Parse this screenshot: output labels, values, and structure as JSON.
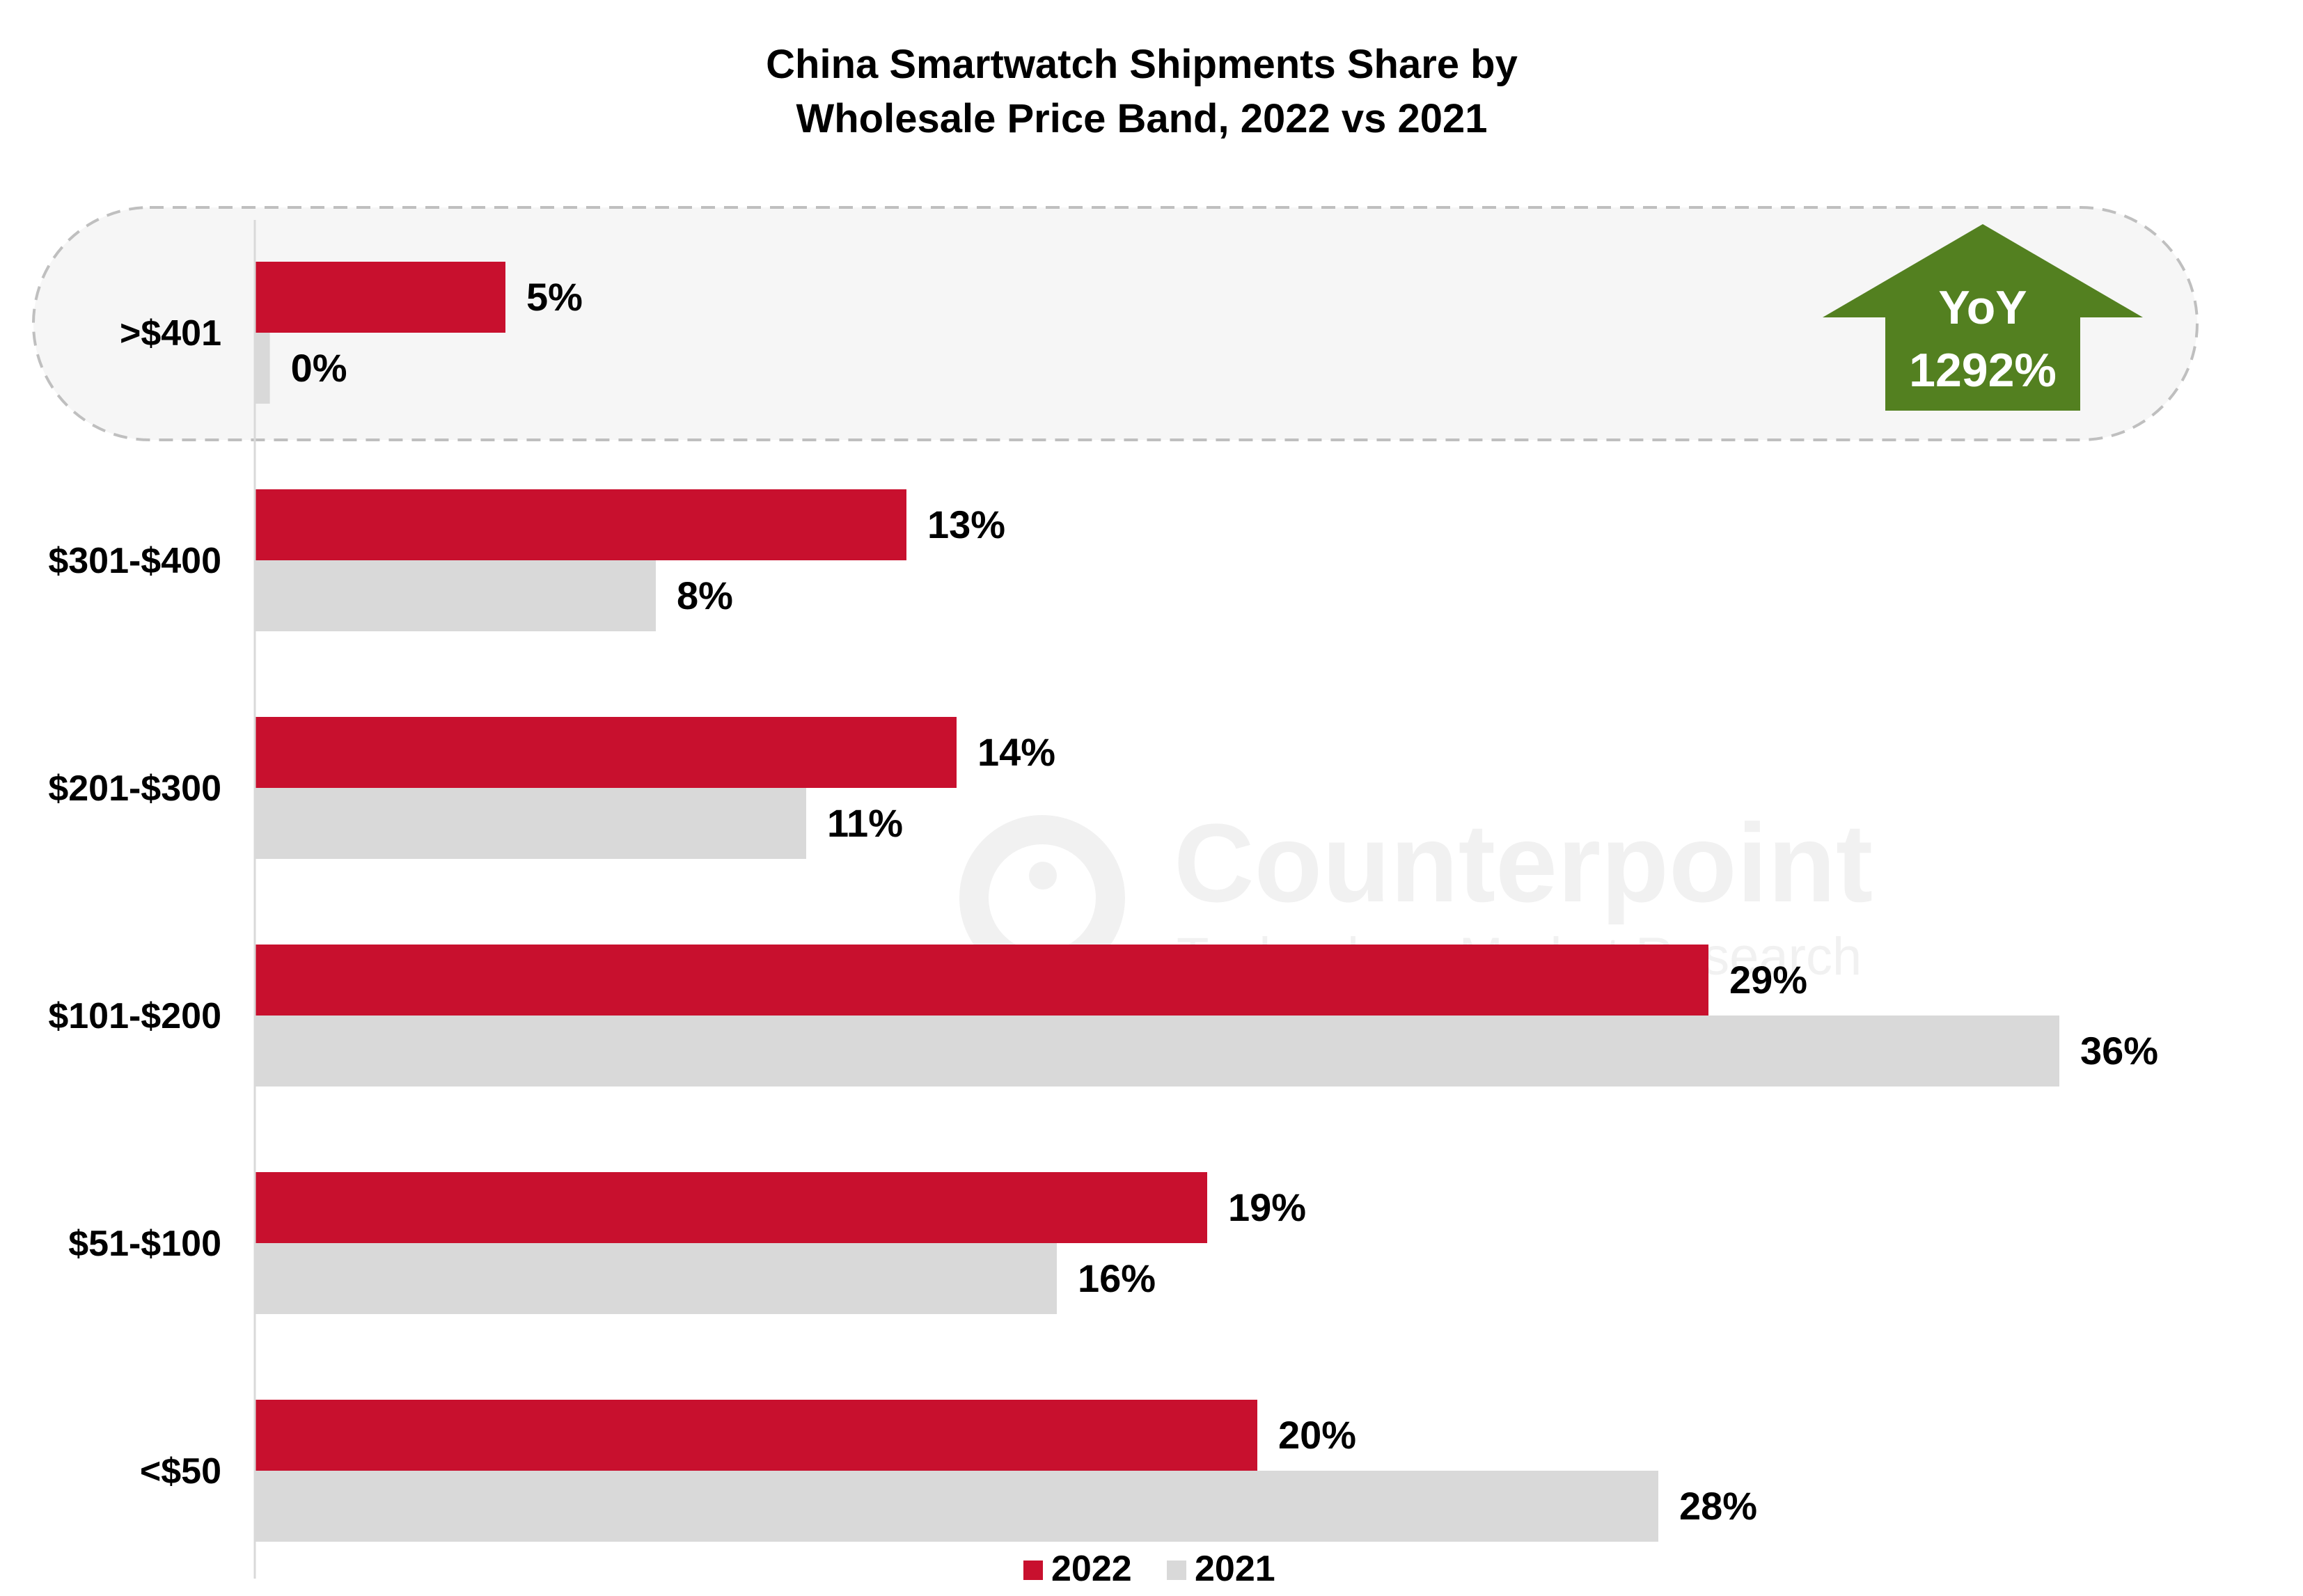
{
  "chart_data": {
    "type": "bar",
    "orientation": "horizontal",
    "title_lines": [
      "China Smartwatch Shipments Share by",
      "Wholesale Price Band, 2022 vs 2021"
    ],
    "categories": [
      ">$401",
      "$301-$400",
      "$201-$300",
      "$101-$200",
      "$51-$100",
      "<$50"
    ],
    "series": [
      {
        "name": "2022",
        "color": "#c8102e",
        "values": [
          5,
          13,
          14,
          29,
          19,
          20
        ],
        "labels": [
          "5%",
          "13%",
          "14%",
          "29%",
          "19%",
          "20%"
        ]
      },
      {
        "name": "2021",
        "color": "#d9d9d9",
        "values": [
          0.3,
          8,
          11,
          36,
          16,
          28
        ],
        "labels": [
          "0%",
          "8%",
          "11%",
          "36%",
          "16%",
          "28%"
        ]
      }
    ],
    "unit": "%",
    "xlim": [
      0,
      40
    ],
    "grid": false,
    "legend_position": "bottom",
    "highlight": {
      "category": ">$401",
      "style": "dashed rounded box"
    },
    "annotation": {
      "line1": "YoY",
      "line2": "1292%",
      "color": "#538020",
      "shape": "up-arrow"
    },
    "watermark": {
      "brand": "Counterpoint",
      "tagline": "Technology Market Research"
    }
  }
}
